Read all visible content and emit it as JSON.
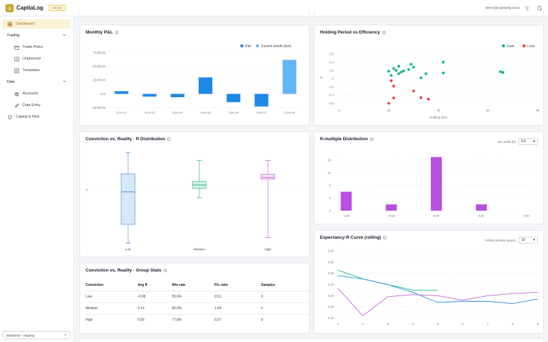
{
  "app": {
    "name": "CapitaLog",
    "badge": "DEMO",
    "user_email": "demo@capitalog.local",
    "logo_icon": "coin-icon",
    "accent": "#c9a227"
  },
  "sidebar": {
    "dashboard": "Dashboard",
    "trading_section": "Trading",
    "trading_items": [
      "Trade Plans",
      "Unplanned",
      "Templates"
    ],
    "data_section": "Data",
    "data_items": [
      "Accounts",
      "Data Entry"
    ],
    "capital_risk": "Capital & Risk",
    "range_value": "2026/2/16 ~ ongoing"
  },
  "monthly_pnl": {
    "title": "Monthly P&L",
    "chart_data": {
      "type": "bar",
      "categories": [
        "2026-02",
        "2026-03",
        "2026-04",
        "2026-05",
        "2026-06",
        "2026-07",
        "2026-08"
      ],
      "series": [
        {
          "name": "P&L",
          "color": "#1e88e5",
          "values": [
            5000,
            -5000,
            -6000,
            30000,
            -15000,
            -23000,
            null
          ]
        },
        {
          "name": "Current month (live)",
          "color": "#64b5f6",
          "values": [
            null,
            null,
            null,
            null,
            null,
            null,
            62000
          ]
        }
      ],
      "yticks": [
        "75,000.00",
        "50,000.00",
        "25,000.00",
        "0.00",
        "-25,000.00"
      ],
      "ylim": [
        -27000,
        75000
      ]
    }
  },
  "holding": {
    "title": "Holding Period vs Efficiency",
    "chart_data": {
      "type": "scatter",
      "xlabel": "Holding days",
      "ylabel": "R",
      "xlim": [
        0,
        80
      ],
      "ylim": [
        -0.6,
        0.6
      ],
      "xticks": [
        "0",
        "20",
        "40",
        "60",
        "80"
      ],
      "yticks": [
        "0.6",
        "0.4",
        "0.2",
        "0",
        "-0.2",
        "-0.4",
        "-0.6"
      ],
      "series": [
        {
          "name": "Gain",
          "color": "#10b981",
          "points": [
            [
              20,
              0.18
            ],
            [
              22,
              0.25
            ],
            [
              23,
              0.2
            ],
            [
              24,
              0.3
            ],
            [
              25,
              0.16
            ],
            [
              26,
              0.19
            ],
            [
              24,
              0.12
            ],
            [
              21,
              0.08
            ],
            [
              28,
              0.22
            ],
            [
              29,
              0.35
            ],
            [
              30,
              0.28
            ],
            [
              33,
              0.02
            ],
            [
              35,
              0.12
            ],
            [
              42,
              0.14
            ],
            [
              42,
              0.4
            ],
            [
              65,
              0.17
            ],
            [
              66,
              0.15
            ]
          ]
        },
        {
          "name": "Loss",
          "color": "#ef4444",
          "points": [
            [
              21,
              -0.05
            ],
            [
              22,
              -0.18
            ],
            [
              22,
              -0.47
            ],
            [
              30,
              -0.3
            ],
            [
              33,
              -0.46
            ],
            [
              36,
              -0.5
            ],
            [
              20,
              -0.6
            ]
          ]
        }
      ]
    }
  },
  "conviction_box": {
    "title": "Conviction vs. Reality · R Distribution",
    "chart_data": {
      "type": "box",
      "categories": [
        "Low",
        "Medium",
        "High"
      ],
      "ytick": "0",
      "ylim": [
        -2.2,
        1.5
      ],
      "series": [
        {
          "name": "Low",
          "color": "#4a90e2",
          "fill": "#d6e8fa",
          "min": -2.0,
          "q1": -1.3,
          "median": -0.08,
          "q3": 0.6,
          "max": 1.4
        },
        {
          "name": "Medium",
          "color": "#2eb88a",
          "fill": "#d5f1e6",
          "min": -0.3,
          "q1": 0.05,
          "median": 0.18,
          "q3": 0.3,
          "max": 1.1
        },
        {
          "name": "High",
          "color": "#c064d8",
          "fill": "#f2ddf7",
          "min": -1.8,
          "q1": 0.4,
          "median": 0.46,
          "q3": 0.58,
          "max": 1.1
        }
      ]
    }
  },
  "rmultiple": {
    "title": "R-multiple Distribution",
    "bin_label": "Bin width (R)",
    "bin_value": "0.5",
    "chart_data": {
      "type": "bar",
      "color": "#b84fe0",
      "categories": [
        "-1.00",
        "",
        "-0.50",
        "",
        "0.00",
        "",
        "0.50",
        "",
        "1.00"
      ],
      "values": [
        6,
        0,
        2,
        0,
        17,
        0,
        2,
        0,
        0
      ],
      "yticks": [
        "16",
        "12",
        "8",
        "4",
        "0"
      ],
      "ylim": [
        0,
        18
      ]
    }
  },
  "expectancy": {
    "title": "Expectancy-R Curve (rolling)",
    "window_label": "Rolling window (plans)",
    "window_value": "10",
    "chart_data": {
      "type": "line",
      "x": [
        1,
        2,
        3,
        4,
        5,
        6,
        7,
        8,
        9
      ],
      "xticks": [
        "1",
        "2",
        "3",
        "4",
        "5",
        "6",
        "7",
        "8",
        "9"
      ],
      "yticks": [
        "0.40",
        "0.30",
        "0.20",
        "0.10",
        "0.00",
        "-0.10",
        "-0.20"
      ],
      "ylim": [
        -0.2,
        0.4
      ],
      "series": [
        {
          "color": "#10b981",
          "values": [
            0.23,
            0.15,
            0.1,
            0.05,
            0.05,
            null,
            null,
            null,
            null
          ]
        },
        {
          "color": "#1e88e5",
          "values": [
            0.18,
            0.15,
            0.1,
            0.03,
            -0.06,
            -0.05,
            -0.05,
            -0.07,
            -0.03
          ]
        },
        {
          "color": "#c064d8",
          "values": [
            0.07,
            -0.18,
            -0.01,
            0.01,
            0.0,
            -0.04,
            0.0,
            0.02,
            0.03
          ]
        }
      ]
    }
  },
  "group_stats": {
    "title": "Conviction vs. Reality · Group Stats",
    "columns": [
      "Conviction",
      "Avg R",
      "Win rate",
      "P/L ratio",
      "Samples"
    ],
    "rows": [
      [
        "Low",
        "-0.08",
        "55.6%",
        "0.51",
        "9"
      ],
      [
        "Medium",
        "0.14",
        "80.0%",
        "1.64",
        "5"
      ],
      [
        "High",
        "0.05",
        "77.8%",
        "0.37",
        "9"
      ]
    ]
  }
}
